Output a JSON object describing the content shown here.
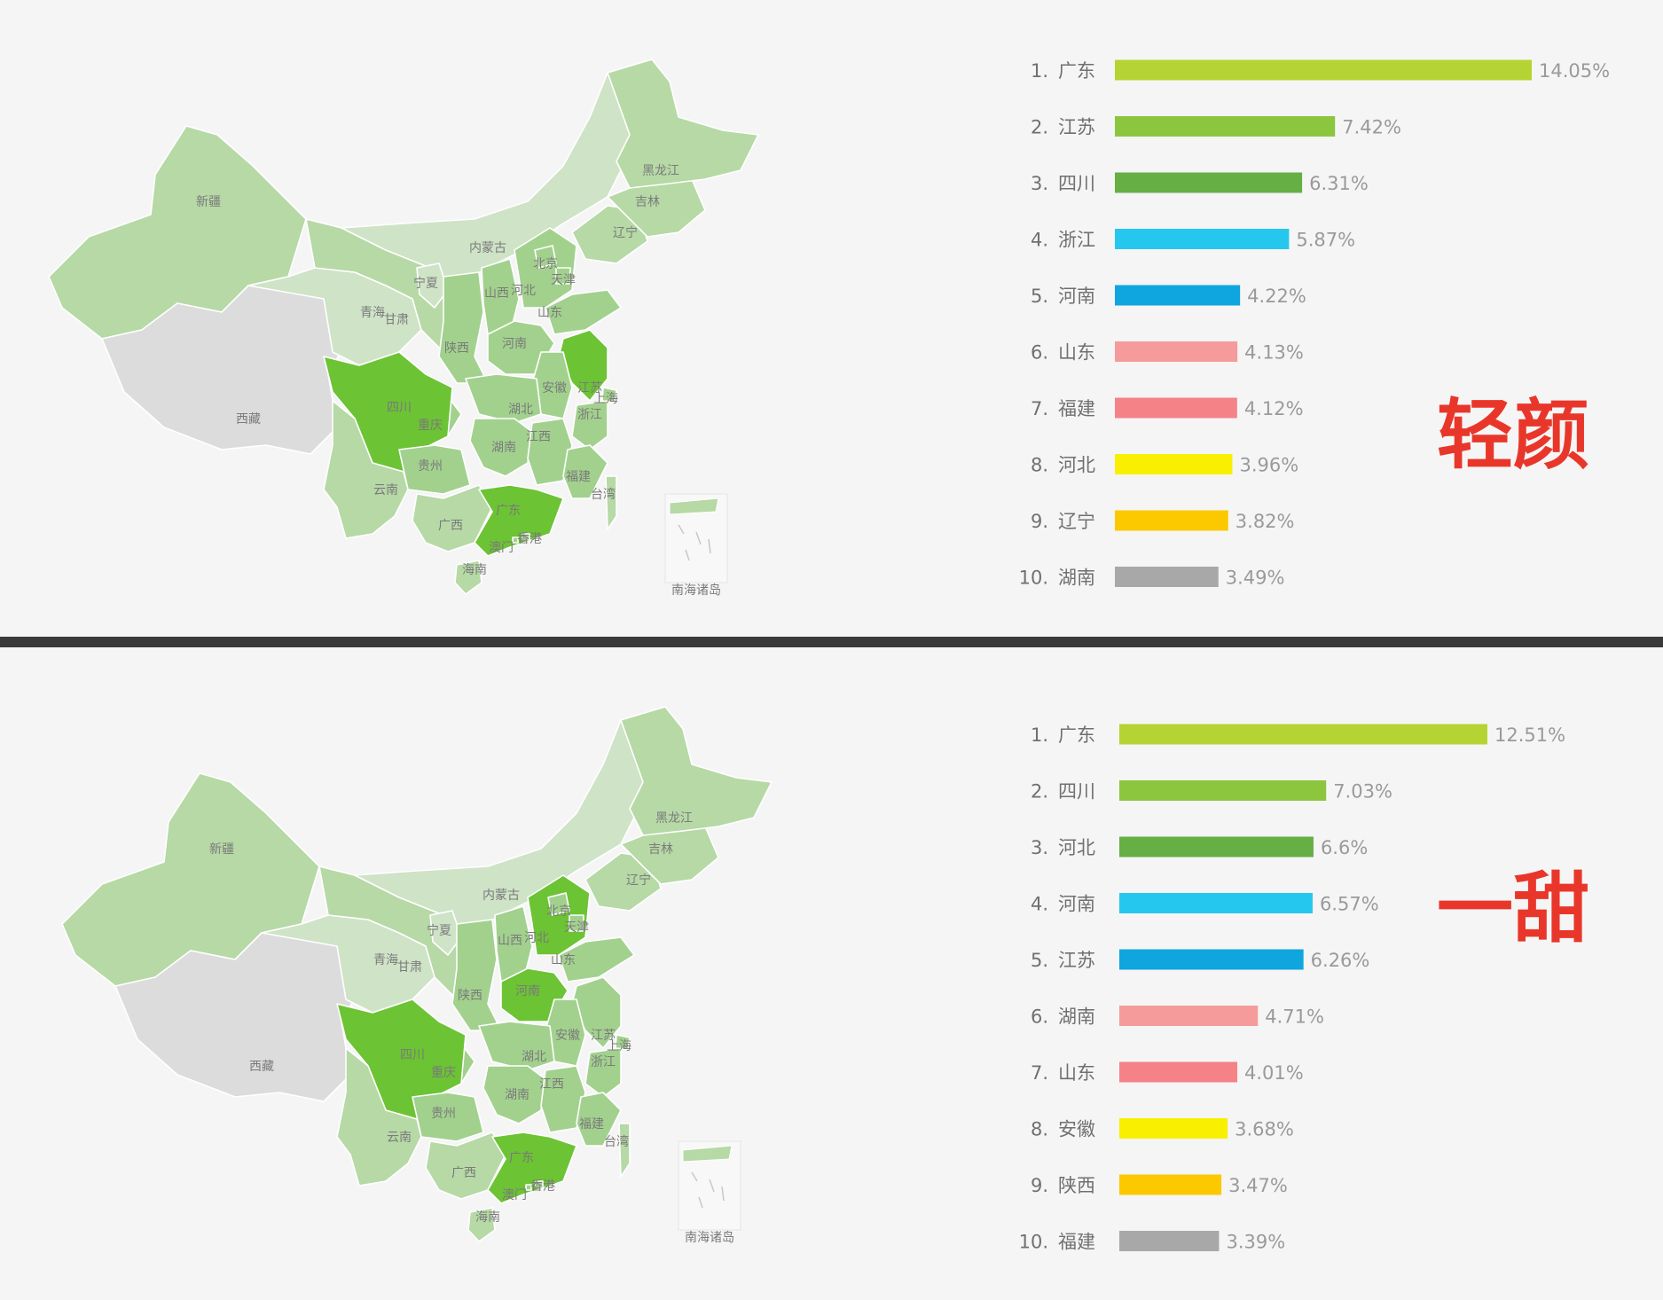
{
  "chart_data": [
    {
      "type": "bar",
      "title": "轻颜",
      "colors": [
        "#b5d332",
        "#8cc63e",
        "#65af45",
        "#26c7ee",
        "#0fa5de",
        "#f59b9b",
        "#f48287",
        "#f8f000",
        "#fcc800",
        "#a8a8a8"
      ],
      "ranks": [
        "1.",
        "2.",
        "3.",
        "4.",
        "5.",
        "6.",
        "7.",
        "8.",
        "9.",
        "10."
      ],
      "categories": [
        "广东",
        "江苏",
        "四川",
        "浙江",
        "河南",
        "山东",
        "福建",
        "河北",
        "辽宁",
        "湖南"
      ],
      "values": [
        14.05,
        7.42,
        6.31,
        5.87,
        4.22,
        4.13,
        4.12,
        3.96,
        3.82,
        3.49
      ],
      "value_labels": [
        "14.05%",
        "7.42%",
        "6.31%",
        "5.87%",
        "4.22%",
        "4.13%",
        "4.12%",
        "3.96%",
        "3.82%",
        "3.49%"
      ]
    },
    {
      "type": "bar",
      "title": "一甜",
      "colors": [
        "#b5d332",
        "#8cc63e",
        "#65af45",
        "#26c7ee",
        "#0fa5de",
        "#f59b9b",
        "#f48287",
        "#f8f000",
        "#fcc800",
        "#a8a8a8"
      ],
      "ranks": [
        "1.",
        "2.",
        "3.",
        "4.",
        "5.",
        "6.",
        "7.",
        "8.",
        "9.",
        "10."
      ],
      "categories": [
        "广东",
        "四川",
        "河北",
        "河南",
        "江苏",
        "湖南",
        "山东",
        "安徽",
        "陕西",
        "福建"
      ],
      "values": [
        12.51,
        7.03,
        6.6,
        6.57,
        6.26,
        4.71,
        4.01,
        3.68,
        3.47,
        3.39
      ],
      "value_labels": [
        "12.51%",
        "7.03%",
        "6.6%",
        "6.57%",
        "6.26%",
        "4.71%",
        "4.01%",
        "3.68%",
        "3.47%",
        "3.39%"
      ]
    }
  ],
  "map_labels": [
    "新疆",
    "西藏",
    "青海",
    "甘肃",
    "内蒙古",
    "宁夏",
    "陕西",
    "山西",
    "河北",
    "北京",
    "天津",
    "辽宁",
    "吉林",
    "黑龙江",
    "山东",
    "河南",
    "四川",
    "重庆",
    "湖北",
    "安徽",
    "江苏",
    "上海",
    "浙江",
    "湖南",
    "江西",
    "福建",
    "台湾",
    "贵州",
    "云南",
    "广西",
    "广东",
    "香港",
    "澳门",
    "海南",
    "南海诸岛"
  ],
  "map_colors": {
    "grey": "#dcdcdc",
    "pale": "#cfe3c7",
    "light": "#b6d9a6",
    "mid": "#a2d18e",
    "strong": "#6cc334"
  },
  "highlight_top": [
    "四川",
    "广东",
    "江苏"
  ],
  "highlight_bottom": [
    "四川",
    "广东",
    "河北",
    "河南"
  ]
}
